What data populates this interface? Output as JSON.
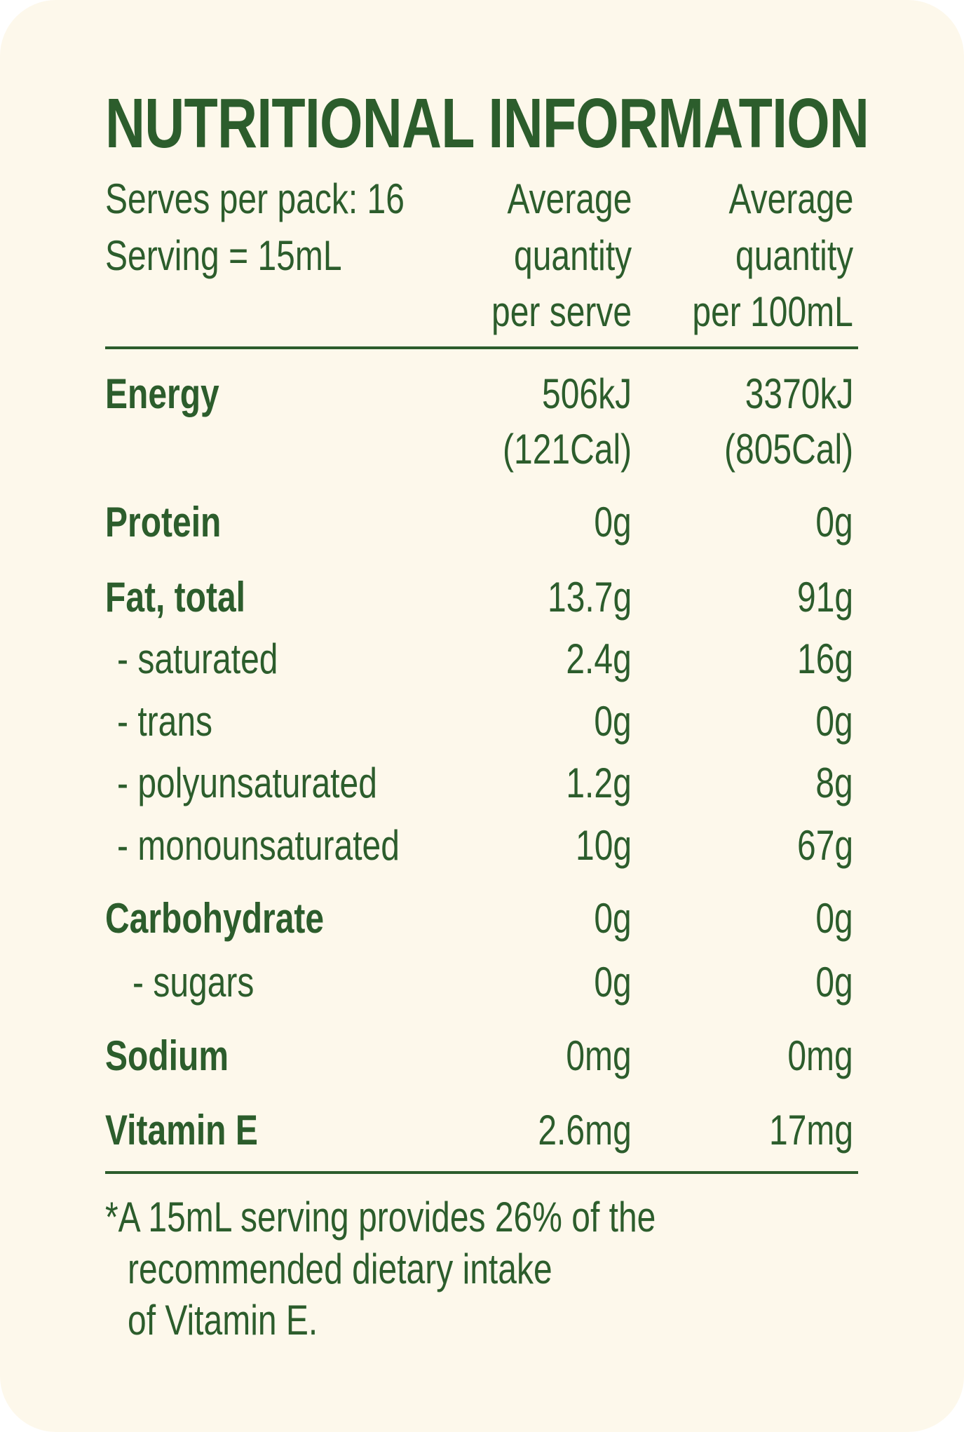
{
  "title": "NUTRITIONAL INFORMATION",
  "header": {
    "serves_per_pack": "Serves per pack: 16",
    "serving_size": "Serving = 15mL",
    "col1": [
      "Average",
      "quantity",
      "per serve"
    ],
    "col2": [
      "Average",
      "quantity",
      "per 100mL"
    ]
  },
  "rows": [
    {
      "label": "Energy",
      "serve": "506kJ",
      "serve2": "(121Cal)",
      "per100": "3370kJ",
      "per1002": "(805Cal)"
    },
    {
      "label": "Protein",
      "serve": "0g",
      "per100": "0g"
    },
    {
      "label": "Fat, total",
      "serve": "13.7g",
      "per100": "91g"
    },
    {
      "label": "- saturated",
      "serve": "2.4g",
      "per100": "16g"
    },
    {
      "label": "- trans",
      "serve": "0g",
      "per100": "0g"
    },
    {
      "label": "- polyunsaturated",
      "serve": "1.2g",
      "per100": "8g"
    },
    {
      "label": "- monounsaturated",
      "serve": "10g",
      "per100": "67g"
    },
    {
      "label": "Carbohydrate",
      "serve": "0g",
      "per100": "0g"
    },
    {
      "label": "- sugars",
      "serve": "0g",
      "per100": "0g"
    },
    {
      "label": "Sodium",
      "serve": "0mg",
      "per100": "0mg"
    },
    {
      "label": "Vitamin E",
      "serve": "2.6mg",
      "per100": "17mg"
    }
  ],
  "footnote": [
    "*A 15mL serving provides 26% of the",
    "recommended dietary intake",
    "of Vitamin E."
  ],
  "colors": {
    "text": "#2c5d2c",
    "background": "#fdf8eb"
  }
}
